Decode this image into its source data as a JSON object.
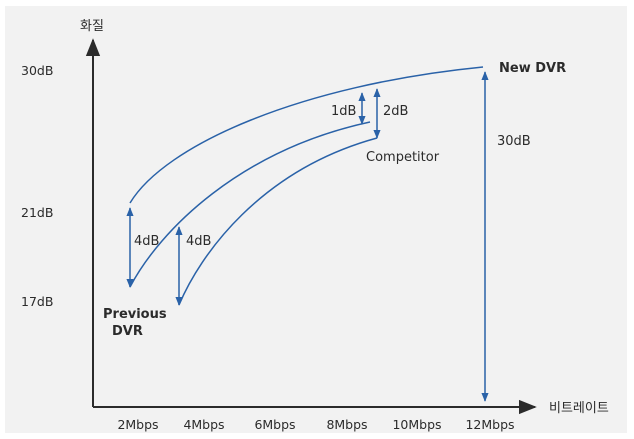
{
  "chart_data": {
    "type": "line",
    "xlabel": "비트레이트",
    "ylabel": "화질",
    "categories": [
      "2Mbps",
      "4Mbps",
      "6Mbps",
      "8Mbps",
      "10Mbps",
      "12Mbps"
    ],
    "y_tick_labels": [
      "17dB",
      "21dB",
      "30dB"
    ],
    "series": [
      {
        "name": "New DVR",
        "points": [
          [
            2,
            21
          ],
          [
            12,
            30
          ]
        ]
      },
      {
        "name": "Competitor",
        "points": [
          [
            2,
            17.5
          ],
          [
            9,
            29
          ]
        ]
      },
      {
        "name": "Previous DVR",
        "points": [
          [
            3.4,
            17
          ],
          [
            9,
            28
          ]
        ]
      }
    ],
    "annotations": [
      {
        "label": "4dB",
        "x": 2,
        "from": 17.5,
        "to": 21
      },
      {
        "label": "4dB",
        "x": 3.4,
        "from": 17,
        "to": 21
      },
      {
        "label": "1dB",
        "x": 8.7,
        "from": 29,
        "to": 30
      },
      {
        "label": "2dB",
        "x": 9.0,
        "from": 28,
        "to": 30
      },
      {
        "label": "30dB",
        "x": 12,
        "from": 10,
        "to": 30
      }
    ],
    "series_labels": {
      "new_dvr": "New DVR",
      "competitor": "Competitor",
      "previous_dvr_line1": "Previous",
      "previous_dvr_line2": "DVR"
    },
    "colors": {
      "curve": "#2a62a8",
      "axis": "#2b2b2b",
      "panel": "#f2f2f2"
    },
    "grid": false,
    "legend": "none"
  }
}
